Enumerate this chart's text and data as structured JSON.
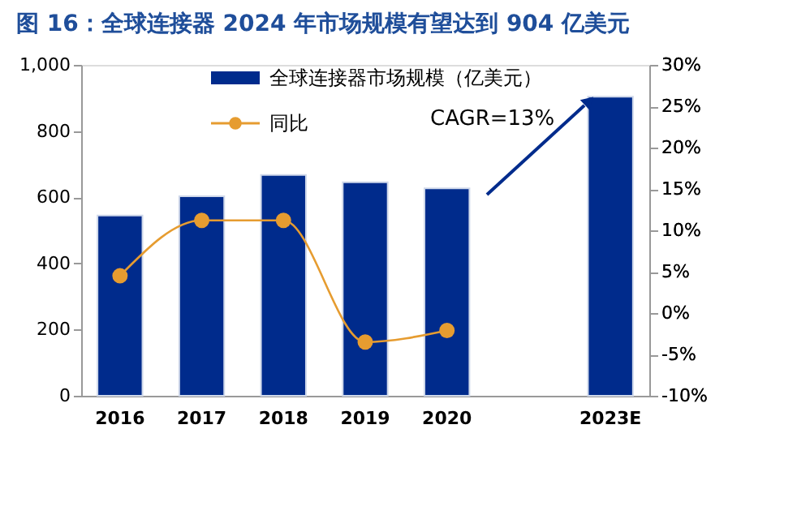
{
  "chart_data": {
    "type": "bar",
    "title": "图 16：全球连接器 2024 年市场规模有望达到 904 亿美元",
    "categories": [
      "2016",
      "2017",
      "2018",
      "2019",
      "2020",
      null,
      "2023E"
    ],
    "series": [
      {
        "name": "全球连接器市场规模（亿美元）",
        "color": "#002b8c",
        "values": [
          545,
          603,
          667,
          645,
          627,
          null,
          904
        ]
      },
      {
        "name": "同比",
        "type": "line",
        "axis": "y2",
        "color": "#e69c30",
        "marker": "circle",
        "values": [
          4.5,
          11.2,
          11.2,
          -3.5,
          -2.1,
          null,
          null
        ]
      }
    ],
    "ylim": [
      0,
      1000
    ],
    "yticks": [
      0,
      200,
      400,
      600,
      800,
      {
        "value": 1000,
        "label": "1,000"
      }
    ],
    "y2lim": [
      -10,
      30
    ],
    "y2ticks": [
      {
        "value": -10,
        "label": "-10%"
      },
      {
        "value": -5,
        "label": "-5%"
      },
      {
        "value": 0,
        "label": "0%"
      },
      {
        "value": 5,
        "label": "5%"
      },
      {
        "value": 10,
        "label": "10%"
      },
      {
        "value": 15,
        "label": "15%"
      },
      {
        "value": 20,
        "label": "20%"
      },
      {
        "value": 25,
        "label": "25%"
      },
      {
        "value": 30,
        "label": "30%"
      }
    ],
    "annotations": [
      "CAGR=13%"
    ],
    "grid": false,
    "legend": "top"
  }
}
